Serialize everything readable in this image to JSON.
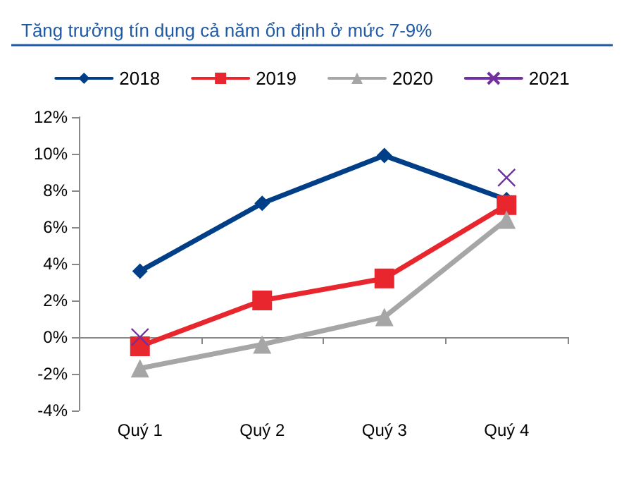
{
  "chart_data": {
    "type": "line",
    "title": "Tăng trưởng tín dụng cả năm ổn định ở mức 7-9%",
    "categories": [
      "Quý 1",
      "Quý 2",
      "Quý 3",
      "Quý 4"
    ],
    "series": [
      {
        "name": "2018",
        "color": "#003f87",
        "marker": "diamond",
        "values": [
          3.6,
          7.3,
          9.9,
          7.5
        ]
      },
      {
        "name": "2019",
        "color": "#e8262e",
        "marker": "square",
        "values": [
          -0.5,
          2.0,
          3.2,
          7.2
        ]
      },
      {
        "name": "2020",
        "color": "#a6a6a6",
        "marker": "triangle",
        "values": [
          -1.7,
          -0.4,
          1.1,
          6.4
        ]
      },
      {
        "name": "2021",
        "color": "#7030a0",
        "marker": "cross",
        "values": [
          0.0,
          null,
          null,
          8.7
        ]
      }
    ],
    "ylim": [
      -4,
      12
    ],
    "yticks": [
      {
        "value": -4,
        "label": "-4%"
      },
      {
        "value": -2,
        "label": "-2%"
      },
      {
        "value": 0,
        "label": "0%"
      },
      {
        "value": 2,
        "label": "2%"
      },
      {
        "value": 4,
        "label": "4%"
      },
      {
        "value": 6,
        "label": "6%"
      },
      {
        "value": 8,
        "label": "8%"
      },
      {
        "value": 10,
        "label": "10%"
      },
      {
        "value": 12,
        "label": "12%"
      }
    ],
    "legend": "top",
    "line_style": "solid"
  }
}
